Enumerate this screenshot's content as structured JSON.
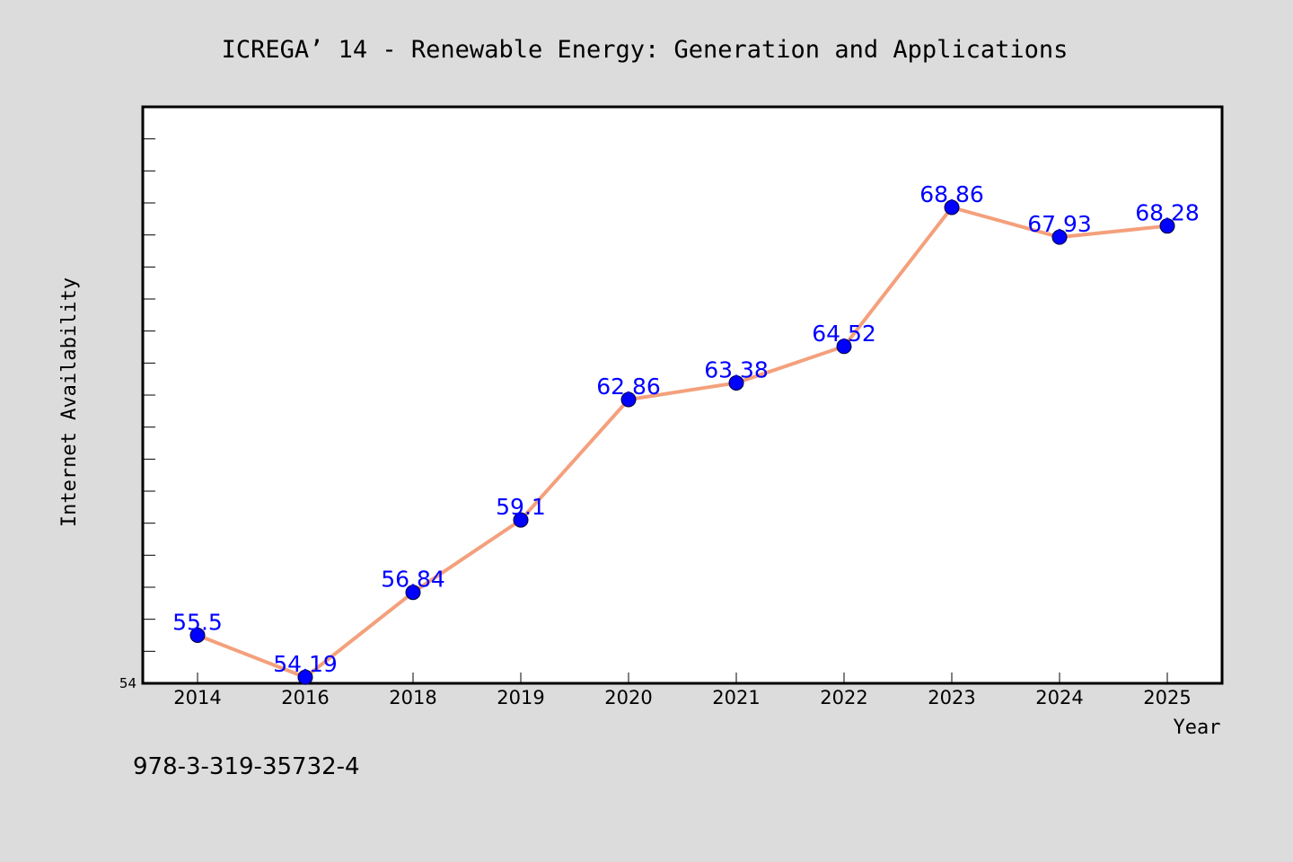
{
  "chart_data": {
    "type": "line",
    "title": "ICREGA’ 14 - Renewable Energy: Generation and Applications",
    "xlabel": "Year",
    "ylabel": "Internet Availability",
    "categories": [
      "2014",
      "2016",
      "2018",
      "2019",
      "2020",
      "2021",
      "2022",
      "2023",
      "2024",
      "2025"
    ],
    "series": [
      {
        "values": [
          55.5,
          54.19,
          56.84,
          59.1,
          62.86,
          63.38,
          64.52,
          68.86,
          67.93,
          68.28
        ],
        "data_labels": [
          "55.5",
          "54.19",
          "56.84",
          "59.1",
          "62.86",
          "63.38",
          "64.52",
          "68.86",
          "67.93",
          "68.28"
        ]
      }
    ],
    "ylim": [
      54,
      72
    ],
    "yticks_labeled": [
      "54"
    ],
    "y_minor_tick_step": 1,
    "grid": false,
    "legend": "none",
    "colors": {
      "line": "#f4a07c",
      "marker": "#0000ff",
      "data_label": "#0000ff",
      "background": "#dcdcdc",
      "plot_area": "#ffffff"
    }
  },
  "footer_text": "978-3-319-35732-4"
}
